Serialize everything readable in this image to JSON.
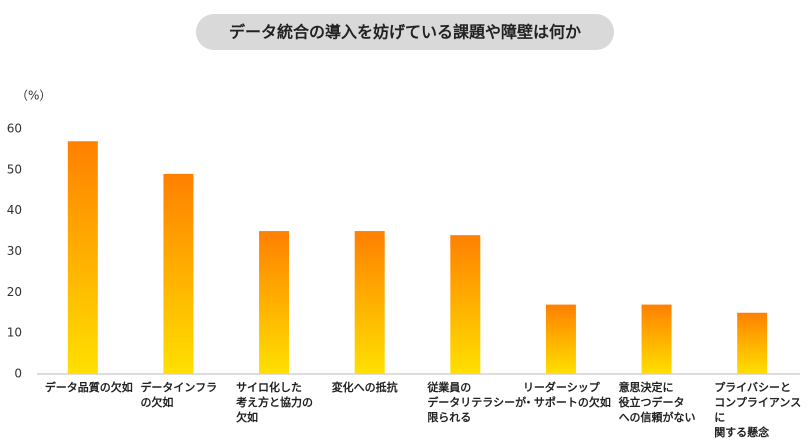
{
  "chart_data": {
    "type": "bar",
    "title": "データ統合の導入を妨げている課題や障壁は何か",
    "y_label": "（%）",
    "categories": [
      "データ品質の欠如",
      "データインフラ\nの欠如",
      "サイロ化した\n考え方と協力の\n欠如",
      "変化への抵抗",
      "従業員の\nデータリテラシーが\n限られる",
      "リーダーシップ\n・サポートの欠如",
      "意思決定に\n役立つデータ\nへの信頼がない",
      "プライバシーと\nコンプライアンスに\n関する懸念"
    ],
    "values": [
      57,
      49,
      35,
      35,
      34,
      17,
      17,
      15
    ],
    "color": "#ff8000",
    "gradient_color": "#ffe000",
    "ylim": [
      0,
      60
    ],
    "yticks": [
      0,
      10,
      20,
      30,
      40,
      50,
      60
    ],
    "grid": false
  }
}
